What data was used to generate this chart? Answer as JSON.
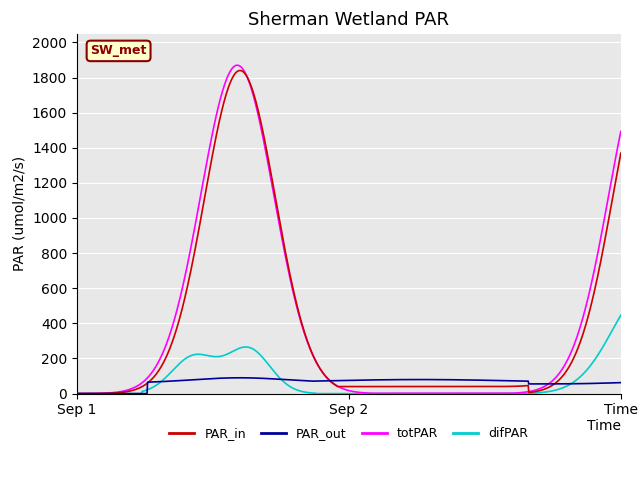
{
  "title": "Sherman Wetland PAR",
  "ylabel": "PAR (umol/m2/s)",
  "xlabel": "Time",
  "ylim": [
    0,
    2050
  ],
  "xlim": [
    0,
    1.0
  ],
  "xtick_positions": [
    0.0,
    0.5,
    1.0
  ],
  "xtick_labels": [
    "Sep 1",
    "Sep 2",
    "Time"
  ],
  "ytick_positions": [
    0,
    200,
    400,
    600,
    800,
    1000,
    1200,
    1400,
    1600,
    1800,
    2000
  ],
  "bg_color": "#e8e8e8",
  "fig_color": "#ffffff",
  "box_label": "SW_met",
  "box_facecolor": "#ffffcc",
  "box_edgecolor": "#8b0000",
  "legend_items": [
    "PAR_in",
    "PAR_out",
    "totPAR",
    "difPAR"
  ],
  "legend_colors": [
    "#cc0000",
    "#000099",
    "#ff00ff",
    "#00cccc"
  ],
  "line_colors": {
    "PAR_in": "#cc0000",
    "PAR_out": "#000099",
    "totPAR": "#ff00ff",
    "difPAR": "#00cccc"
  },
  "title_fontsize": 13,
  "axis_fontsize": 10,
  "tick_fontsize": 10
}
